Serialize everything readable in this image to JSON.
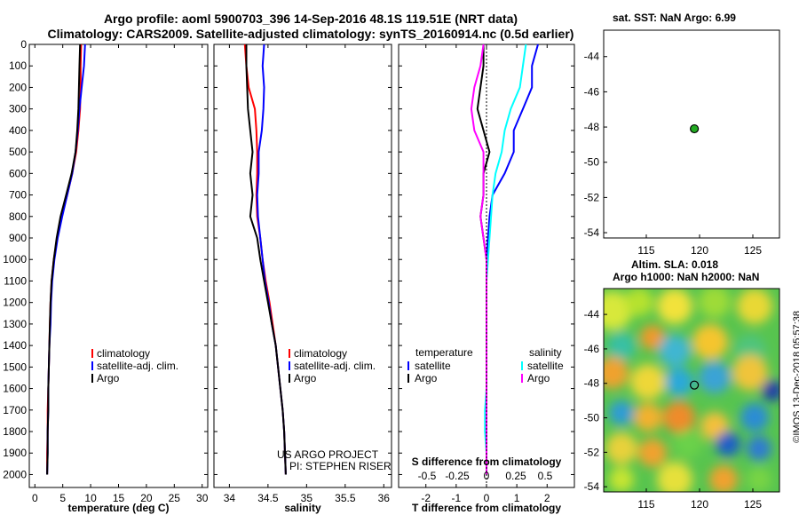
{
  "titles": {
    "line1": "Argo profile: aoml 5900703_396 14-Sep-2016 48.1S 119.51E (NRT data)",
    "line2": "Climatology: CARS2009. Satellite-adjusted climatology: synTS_20160914.nc (0.5d earlier)"
  },
  "colors": {
    "climatology": "#ff0000",
    "satellite": "#0000ff",
    "argo": "#000000",
    "s_satellite": "#00ffff",
    "s_argo": "#ff00ff",
    "marker": "#22aa22"
  },
  "credit": {
    "line1": "US ARGO PROJECT",
    "line2": "PI: STEPHEN RISER"
  },
  "watermark": "©IMOS 13-Dec-2018 05:57:38",
  "chart_data": [
    {
      "type": "line",
      "xlabel": "temperature (deg C)",
      "xlim": [
        -1,
        31
      ],
      "ylim": [
        2060,
        0
      ],
      "xticks": [
        "0",
        "5",
        "10",
        "15",
        "20",
        "25",
        "30"
      ],
      "yticks": [
        "0",
        "100",
        "200",
        "300",
        "400",
        "500",
        "600",
        "700",
        "800",
        "900",
        "1000",
        "1100",
        "1200",
        "1300",
        "1400",
        "1500",
        "1600",
        "1700",
        "1800",
        "1900",
        "2000"
      ],
      "legend": [
        "climatology",
        "satellite-adj. clim.",
        "Argo"
      ],
      "series": [
        {
          "name": "climatology",
          "color": "climatology",
          "x": [
            8.3,
            8.2,
            8.2,
            8.1,
            7.8,
            7.4,
            6.7,
            5.8,
            4.8,
            4.0,
            3.4,
            3.0,
            2.8,
            2.7,
            2.6,
            2.5,
            2.4,
            2.3,
            2.3,
            2.2,
            2.2
          ],
          "y": [
            0,
            100,
            200,
            300,
            400,
            500,
            600,
            700,
            800,
            900,
            1000,
            1100,
            1200,
            1300,
            1400,
            1500,
            1600,
            1700,
            1800,
            1900,
            2000
          ]
        },
        {
          "name": "satellite-adj. clim.",
          "color": "satellite",
          "x": [
            9.0,
            8.8,
            8.4,
            8.0,
            7.7,
            7.3,
            6.7,
            5.8,
            4.9,
            4.1,
            3.5,
            3.1,
            2.9,
            2.8,
            2.6,
            2.5,
            2.4,
            2.4,
            2.3,
            2.3,
            2.2
          ],
          "y": [
            0,
            100,
            200,
            300,
            400,
            500,
            600,
            700,
            800,
            900,
            1000,
            1100,
            1200,
            1300,
            1400,
            1500,
            1600,
            1700,
            1800,
            1900,
            2000
          ]
        },
        {
          "name": "Argo",
          "color": "argo",
          "x": [
            8.1,
            8.0,
            7.9,
            7.8,
            7.6,
            7.3,
            6.6,
            5.6,
            4.6,
            3.9,
            3.4,
            3.0,
            2.8,
            2.7,
            2.6,
            2.5,
            2.4,
            2.4,
            2.3,
            2.3,
            2.2
          ],
          "y": [
            0,
            100,
            200,
            300,
            400,
            500,
            600,
            700,
            800,
            900,
            1000,
            1100,
            1200,
            1300,
            1400,
            1500,
            1600,
            1700,
            1800,
            1900,
            2000
          ]
        }
      ]
    },
    {
      "type": "line",
      "xlabel": "salinity",
      "xlim": [
        33.8,
        36.1
      ],
      "ylim": [
        2060,
        0
      ],
      "xticks": [
        "34",
        "34.5",
        "35",
        "35.5",
        "36"
      ],
      "legend": [
        "climatology",
        "satellite-adj. clim.",
        "Argo"
      ],
      "series": [
        {
          "name": "climatology",
          "color": "climatology",
          "x": [
            34.2,
            34.22,
            34.25,
            34.33,
            34.35,
            34.36,
            34.36,
            34.35,
            34.36,
            34.4,
            34.43,
            34.47,
            34.52,
            34.56,
            34.6,
            34.63,
            34.66,
            34.69,
            34.71,
            34.72,
            34.73
          ],
          "y": [
            0,
            100,
            200,
            300,
            400,
            500,
            600,
            700,
            800,
            900,
            1000,
            1100,
            1200,
            1300,
            1400,
            1500,
            1600,
            1700,
            1800,
            1900,
            2000
          ]
        },
        {
          "name": "satellite-adj. clim.",
          "color": "satellite",
          "x": [
            34.45,
            34.43,
            34.45,
            34.44,
            34.42,
            34.38,
            34.38,
            34.36,
            34.37,
            34.4,
            34.43,
            34.46,
            34.51,
            34.55,
            34.6,
            34.63,
            34.66,
            34.69,
            34.71,
            34.72,
            34.73
          ],
          "y": [
            0,
            100,
            200,
            300,
            400,
            500,
            600,
            700,
            800,
            900,
            1000,
            1100,
            1200,
            1300,
            1400,
            1500,
            1600,
            1700,
            1800,
            1900,
            2000
          ]
        },
        {
          "name": "Argo",
          "color": "argo",
          "x": [
            34.22,
            34.22,
            34.23,
            34.24,
            34.27,
            34.3,
            34.27,
            34.3,
            34.27,
            34.36,
            34.4,
            34.45,
            34.5,
            34.55,
            34.6,
            34.63,
            34.66,
            34.69,
            34.71,
            34.72,
            34.73
          ],
          "y": [
            0,
            100,
            200,
            300,
            400,
            500,
            600,
            700,
            800,
            900,
            1000,
            1100,
            1200,
            1300,
            1400,
            1500,
            1600,
            1700,
            1800,
            1900,
            2000
          ]
        }
      ]
    },
    {
      "type": "line",
      "xlabel": "T difference from climatology",
      "xlabel_top": "S difference from climatology",
      "xlim": [
        -2.9,
        2.9
      ],
      "ylim": [
        2060,
        0
      ],
      "xticks": [
        "-2",
        "-1",
        "0",
        "1",
        "2"
      ],
      "xticks_s": [
        "-0.5",
        "-0.25",
        "0",
        "0.25",
        "0.5"
      ],
      "legend_left_title": "temperature",
      "legend_right_title": "salinity",
      "legend_left": [
        "satellite",
        "Argo"
      ],
      "legend_right": [
        "satellite",
        "Argo"
      ],
      "series": [
        {
          "name": "satellite",
          "color": "satellite",
          "x": [
            1.7,
            1.5,
            1.5,
            1.2,
            0.9,
            0.9,
            0.6,
            0.2,
            0.1,
            0.05,
            0.0,
            0.0,
            0.0,
            0.0,
            0.0,
            0.0,
            0.0,
            0.0,
            0.0,
            0.0,
            0.0
          ],
          "y": [
            0,
            100,
            200,
            300,
            400,
            500,
            600,
            700,
            800,
            900,
            1000,
            1100,
            1200,
            1300,
            1400,
            1500,
            1600,
            1700,
            1800,
            1900,
            2000
          ]
        },
        {
          "name": "Argo",
          "color": "argo",
          "x": [
            -0.1,
            -0.1,
            -0.2,
            -0.3,
            -0.1,
            0.1,
            -0.1,
            -0.1,
            -0.2,
            -0.1,
            0.0,
            0.0,
            0.0,
            0.0,
            0.0,
            0.0,
            0.0,
            0.0,
            0.0,
            0.0,
            0.0
          ],
          "y": [
            0,
            100,
            200,
            300,
            400,
            500,
            600,
            700,
            800,
            900,
            1000,
            1100,
            1200,
            1300,
            1400,
            1500,
            1600,
            1700,
            1800,
            1900,
            2000
          ]
        },
        {
          "name": "satellite",
          "color": "s_satellite",
          "x": [
            1.3,
            1.2,
            1.1,
            0.8,
            0.6,
            0.5,
            0.3,
            0.2,
            0.15,
            0.1,
            0.05,
            0.0,
            0.0,
            0.0,
            0.0,
            0.0,
            0.0,
            -0.05,
            -0.05,
            0.0,
            0.0
          ],
          "y": [
            0,
            100,
            200,
            300,
            400,
            500,
            600,
            700,
            800,
            900,
            1000,
            1100,
            1200,
            1300,
            1400,
            1500,
            1600,
            1700,
            1800,
            1900,
            2000
          ]
        },
        {
          "name": "Argo",
          "color": "s_argo",
          "x": [
            -0.1,
            -0.2,
            -0.4,
            -0.5,
            -0.4,
            -0.1,
            -0.1,
            -0.1,
            -0.2,
            -0.1,
            0.0,
            0.0,
            0.0,
            0.0,
            0.0,
            0.0,
            0.0,
            0.0,
            0.0,
            0.0,
            0.0
          ],
          "y": [
            0,
            100,
            200,
            300,
            400,
            500,
            600,
            700,
            800,
            900,
            1000,
            1100,
            1200,
            1300,
            1400,
            1500,
            1600,
            1700,
            1800,
            1900,
            2000
          ]
        }
      ]
    },
    {
      "type": "scatter",
      "title": "sat. SST: NaN Argo: 6.99",
      "xlim": [
        111,
        127.5
      ],
      "ylim": [
        -54.3,
        -42.5
      ],
      "xticks": [
        "115",
        "120",
        "125"
      ],
      "yticks": [
        "-44",
        "-46",
        "-48",
        "-50",
        "-52",
        "-54"
      ],
      "points": [
        {
          "x": 119.51,
          "y": -48.1
        }
      ]
    },
    {
      "type": "heatmap",
      "title_line1": "Altim. SLA: 0.018",
      "title_line2": "Argo h1000: NaN h2000: NaN",
      "xlim": [
        111,
        127.5
      ],
      "ylim": [
        -54.3,
        -42.5
      ],
      "xticks": [
        "115",
        "120",
        "125"
      ],
      "yticks": [
        "-44",
        "-46",
        "-48",
        "-50",
        "-52",
        "-54"
      ],
      "points": [
        {
          "x": 119.51,
          "y": -48.1
        }
      ]
    }
  ]
}
